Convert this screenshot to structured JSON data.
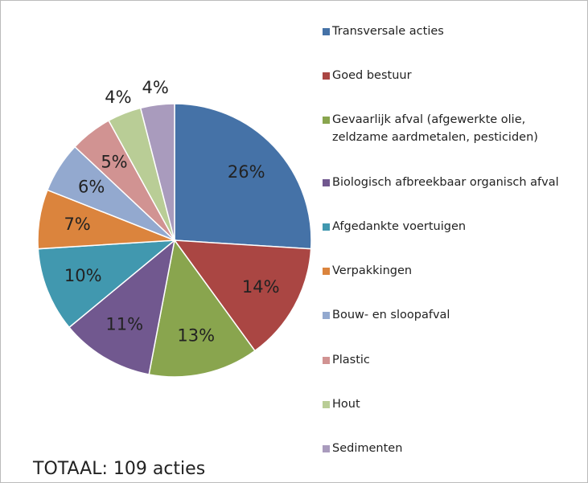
{
  "chart_data": {
    "type": "pie",
    "categories": [
      "Transversale acties",
      "Goed bestuur",
      "Gevaarlijk afval (afgewerkte olie, zeldzame aardmetalen, pesticiden)",
      "Biologisch afbreekbaar organisch afval",
      "Afgedankte voertuigen",
      "Verpakkingen",
      "Bouw- en sloopafval",
      "Plastic",
      "Hout",
      "Sedimenten"
    ],
    "values": [
      26,
      14,
      13,
      11,
      10,
      7,
      6,
      5,
      4,
      4
    ],
    "value_labels": [
      "26%",
      "14%",
      "13%",
      "11%",
      "10%",
      "7%",
      "6%",
      "5%",
      "4%",
      "4%"
    ],
    "colors": [
      "#4572a7",
      "#aa4643",
      "#89a54e",
      "#71588f",
      "#4198af",
      "#db843d",
      "#93a9cf",
      "#d19392",
      "#b9cd96",
      "#a99bbd"
    ],
    "legend": "right",
    "annotation": "TOTAAL: 109 acties"
  }
}
